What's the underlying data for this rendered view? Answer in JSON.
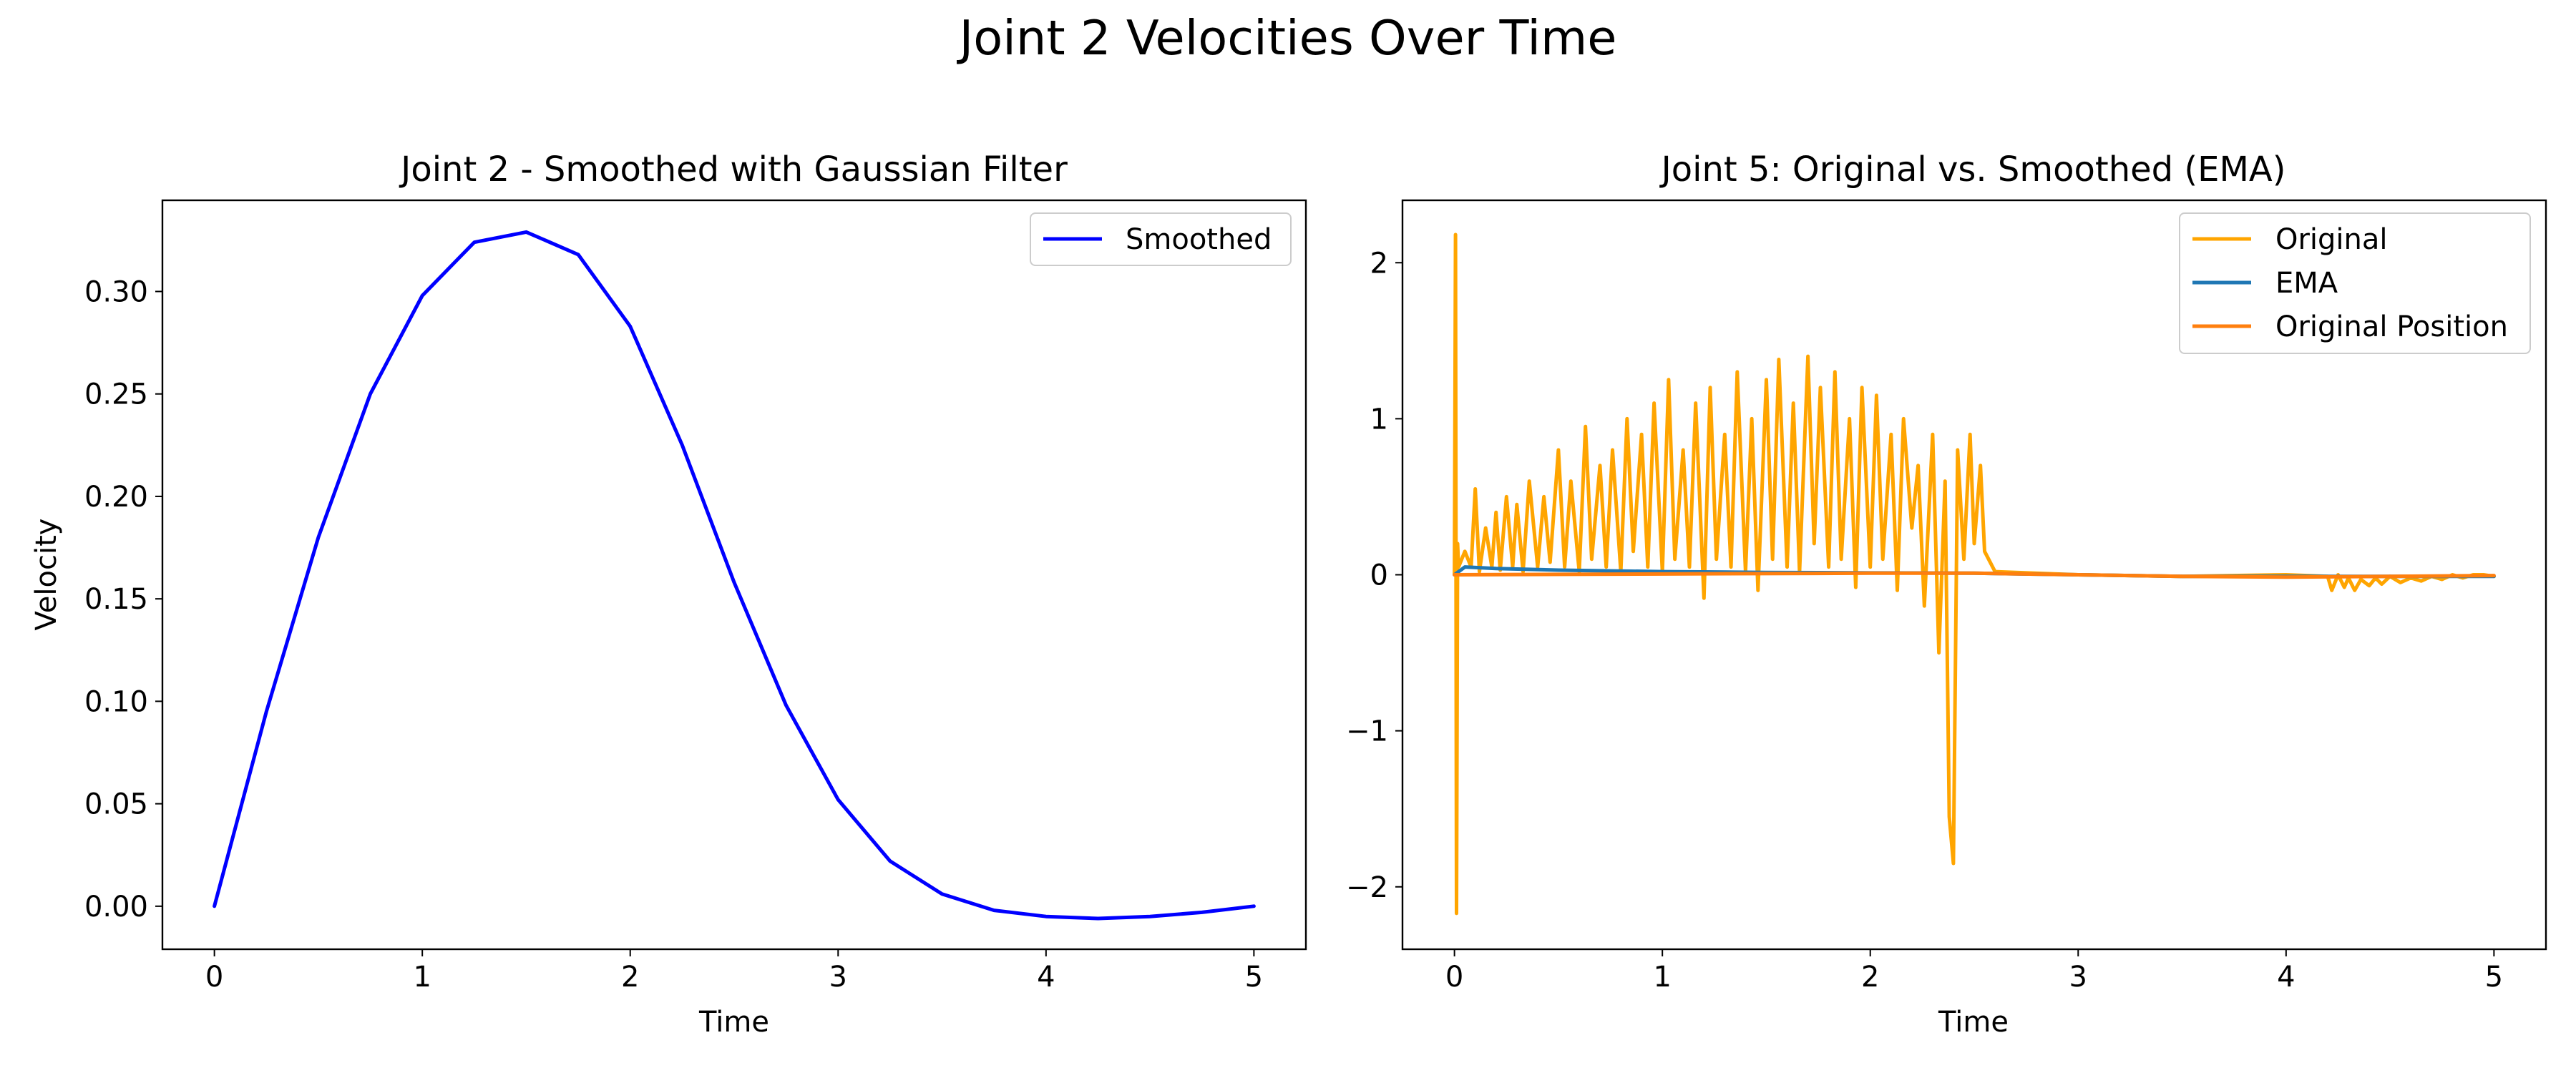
{
  "figure": {
    "suptitle": "Joint 2 Velocities Over Time"
  },
  "chart_data": [
    {
      "type": "line",
      "title": "Joint 2 - Smoothed with Gaussian Filter",
      "xlabel": "Time",
      "ylabel": "Velocity",
      "xlim": [
        -0.25,
        5.25
      ],
      "ylim": [
        -0.021,
        0.3445
      ],
      "xticks": [
        0,
        1,
        2,
        3,
        4,
        5
      ],
      "xtick_labels": [
        "0",
        "1",
        "2",
        "3",
        "4",
        "5"
      ],
      "yticks": [
        0.0,
        0.05,
        0.1,
        0.15,
        0.2,
        0.25,
        0.3
      ],
      "ytick_labels": [
        "0.00",
        "0.05",
        "0.10",
        "0.15",
        "0.20",
        "0.25",
        "0.30"
      ],
      "grid": false,
      "legend_position": "upper right",
      "series": [
        {
          "name": "Smoothed",
          "color": "#0000ff",
          "x": [
            0,
            0.25,
            0.5,
            0.75,
            1.0,
            1.25,
            1.5,
            1.75,
            2.0,
            2.25,
            2.5,
            2.75,
            3.0,
            3.25,
            3.5,
            3.75,
            4.0,
            4.25,
            4.5,
            4.75,
            5.0
          ],
          "y": [
            0.0,
            0.095,
            0.18,
            0.25,
            0.298,
            0.324,
            0.329,
            0.318,
            0.283,
            0.225,
            0.158,
            0.098,
            0.052,
            0.022,
            0.006,
            -0.002,
            -0.005,
            -0.006,
            -0.005,
            -0.003,
            0.0
          ]
        }
      ]
    },
    {
      "type": "line",
      "title": "Joint 5: Original vs. Smoothed (EMA)",
      "xlabel": "Time",
      "ylabel": "",
      "xlim": [
        -0.25,
        5.25
      ],
      "ylim": [
        -2.4,
        2.4
      ],
      "xticks": [
        0,
        1,
        2,
        3,
        4,
        5
      ],
      "xtick_labels": [
        "0",
        "1",
        "2",
        "3",
        "4",
        "5"
      ],
      "yticks": [
        -2,
        -1,
        0,
        1,
        2
      ],
      "ytick_labels": [
        "−2",
        "−1",
        "0",
        "1",
        "2"
      ],
      "grid": false,
      "legend_position": "upper right",
      "series": [
        {
          "name": "Original",
          "color": "#ffa500",
          "x": [
            0,
            0.005,
            0.01,
            0.015,
            0.02,
            0.05,
            0.08,
            0.1,
            0.12,
            0.15,
            0.18,
            0.2,
            0.22,
            0.25,
            0.28,
            0.3,
            0.33,
            0.36,
            0.4,
            0.43,
            0.46,
            0.5,
            0.53,
            0.56,
            0.6,
            0.63,
            0.66,
            0.7,
            0.73,
            0.76,
            0.8,
            0.83,
            0.86,
            0.9,
            0.93,
            0.96,
            1.0,
            1.03,
            1.06,
            1.1,
            1.13,
            1.16,
            1.2,
            1.23,
            1.26,
            1.3,
            1.33,
            1.36,
            1.4,
            1.43,
            1.46,
            1.5,
            1.53,
            1.56,
            1.6,
            1.63,
            1.66,
            1.7,
            1.73,
            1.76,
            1.8,
            1.83,
            1.86,
            1.9,
            1.93,
            1.96,
            2.0,
            2.03,
            2.06,
            2.1,
            2.13,
            2.16,
            2.2,
            2.23,
            2.26,
            2.3,
            2.33,
            2.36,
            2.38,
            2.4,
            2.42,
            2.45,
            2.48,
            2.5,
            2.53,
            2.55,
            2.6,
            3.0,
            3.5,
            4.0,
            4.2,
            4.22,
            4.25,
            4.28,
            4.3,
            4.33,
            4.36,
            4.4,
            4.43,
            4.46,
            4.5,
            4.55,
            4.6,
            4.65,
            4.7,
            4.75,
            4.8,
            4.85,
            4.9,
            4.95,
            5.0
          ],
          "y": [
            0.0,
            2.18,
            -2.17,
            0.2,
            0.05,
            0.15,
            0.05,
            0.55,
            0.02,
            0.3,
            0.05,
            0.4,
            0.03,
            0.5,
            0.05,
            0.45,
            0.02,
            0.6,
            0.05,
            0.5,
            0.08,
            0.8,
            0.05,
            0.6,
            0.02,
            0.95,
            0.1,
            0.7,
            0.05,
            0.8,
            0.02,
            1.0,
            0.15,
            0.9,
            0.05,
            1.1,
            0.02,
            1.25,
            0.1,
            0.8,
            0.05,
            1.1,
            -0.15,
            1.2,
            0.1,
            0.9,
            0.05,
            1.3,
            0.02,
            1.0,
            -0.1,
            1.25,
            0.1,
            1.38,
            0.05,
            1.1,
            0.02,
            1.4,
            0.2,
            1.2,
            0.05,
            1.3,
            0.1,
            1.0,
            -0.08,
            1.2,
            0.05,
            1.15,
            0.1,
            0.9,
            -0.1,
            1.0,
            0.3,
            0.7,
            -0.2,
            0.9,
            -0.5,
            0.6,
            -1.55,
            -1.85,
            0.8,
            0.1,
            0.9,
            0.2,
            0.7,
            0.15,
            0.02,
            0.0,
            -0.01,
            0.0,
            -0.01,
            -0.1,
            0.0,
            -0.08,
            -0.02,
            -0.1,
            -0.03,
            -0.07,
            -0.02,
            -0.06,
            -0.01,
            -0.05,
            -0.02,
            -0.04,
            -0.01,
            -0.03,
            0.0,
            -0.02,
            0.0,
            0.0,
            -0.01
          ]
        },
        {
          "name": "EMA",
          "color": "#1f77b4",
          "x": [
            0,
            0.05,
            0.2,
            0.5,
            1.0,
            1.5,
            2.0,
            2.5,
            3.0,
            3.5,
            4.0,
            4.5,
            5.0
          ],
          "y": [
            0.0,
            0.05,
            0.04,
            0.03,
            0.02,
            0.015,
            0.012,
            0.01,
            0.0,
            -0.01,
            -0.01,
            -0.01,
            -0.01
          ]
        },
        {
          "name": "Original Position",
          "color": "#ff7f0e",
          "x": [
            0,
            1.0,
            2.0,
            2.5,
            3.0,
            3.5,
            4.0,
            4.5,
            5.0
          ],
          "y": [
            0.0,
            0.005,
            0.01,
            0.01,
            0.0,
            -0.01,
            -0.015,
            -0.01,
            -0.005
          ]
        }
      ]
    }
  ]
}
